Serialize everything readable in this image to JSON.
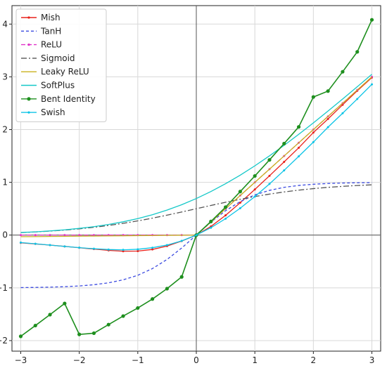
{
  "chart_data": {
    "type": "line",
    "title": "",
    "xlabel": "",
    "ylabel": "",
    "xlim": [
      -3.15,
      3.15
    ],
    "ylim": [
      -2.2,
      4.35
    ],
    "x_ticks": [
      -3,
      -2,
      -1,
      0,
      1,
      2,
      3
    ],
    "y_ticks": [
      -2,
      -1,
      0,
      1,
      2,
      3,
      4
    ],
    "grid": true,
    "legend_position": "top-left",
    "x": [
      -3,
      -2.75,
      -2.5,
      -2.25,
      -2,
      -1.75,
      -1.5,
      -1.25,
      -1,
      -0.75,
      -0.5,
      -0.25,
      0,
      0.25,
      0.5,
      0.75,
      1,
      1.25,
      1.5,
      1.75,
      2,
      2.25,
      2.5,
      2.75,
      3
    ],
    "series": [
      {
        "name": "Mish",
        "color": "#e8211b",
        "dash": "",
        "marker": "dot-small",
        "values": [
          -0.146,
          -0.167,
          -0.19,
          -0.214,
          -0.24,
          -0.265,
          -0.29,
          -0.306,
          -0.303,
          -0.272,
          -0.208,
          -0.113,
          0,
          0.164,
          0.375,
          0.614,
          0.865,
          1.124,
          1.388,
          1.655,
          1.944,
          2.202,
          2.47,
          2.735,
          2.987
        ]
      },
      {
        "name": "TanH",
        "color": "#3b4ae0",
        "dash": "4,3",
        "marker": "none",
        "values": [
          -0.995,
          -0.992,
          -0.987,
          -0.978,
          -0.964,
          -0.941,
          -0.905,
          -0.848,
          -0.762,
          -0.635,
          -0.462,
          -0.245,
          0,
          0.245,
          0.462,
          0.635,
          0.762,
          0.848,
          0.905,
          0.941,
          0.964,
          0.978,
          0.987,
          0.992,
          0.995
        ]
      },
      {
        "name": "ReLU",
        "color": "#e033c9",
        "dash": "6,3",
        "marker": "dot-small",
        "values": [
          0,
          0,
          0,
          0,
          0,
          0,
          0,
          0,
          0,
          0,
          0,
          0,
          0,
          0.25,
          0.5,
          0.75,
          1,
          1.25,
          1.5,
          1.75,
          2,
          2.25,
          2.5,
          2.75,
          3
        ]
      },
      {
        "name": "Sigmoid",
        "color": "#555555",
        "dash": "8,3,2,3",
        "marker": "none",
        "values": [
          0.047,
          0.06,
          0.076,
          0.095,
          0.119,
          0.148,
          0.182,
          0.223,
          0.269,
          0.321,
          0.378,
          0.438,
          0.5,
          0.562,
          0.622,
          0.679,
          0.731,
          0.777,
          0.818,
          0.852,
          0.881,
          0.905,
          0.924,
          0.94,
          0.953
        ]
      },
      {
        "name": "Leaky ReLU",
        "color": "#c9b11c",
        "dash": "",
        "marker": "none",
        "values": [
          -0.03,
          -0.028,
          -0.025,
          -0.023,
          -0.02,
          -0.018,
          -0.015,
          -0.013,
          -0.01,
          -0.008,
          -0.005,
          -0.003,
          0,
          0.25,
          0.5,
          0.75,
          1,
          1.25,
          1.5,
          1.75,
          2,
          2.25,
          2.5,
          2.75,
          3
        ]
      },
      {
        "name": "SoftPlus",
        "color": "#14c8c8",
        "dash": "",
        "marker": "none",
        "values": [
          0.049,
          0.062,
          0.079,
          0.1,
          0.127,
          0.16,
          0.201,
          0.252,
          0.313,
          0.386,
          0.474,
          0.576,
          0.693,
          0.826,
          0.974,
          1.136,
          1.313,
          1.502,
          1.701,
          1.91,
          2.127,
          2.351,
          2.579,
          2.812,
          3.049
        ]
      },
      {
        "name": "Bent Identity",
        "color": "#1e8f1e",
        "dash": "",
        "marker": "dot-large",
        "values": [
          -1.919,
          -1.715,
          -1.508,
          -1.296,
          -1.882,
          -1.86,
          -1.697,
          -1.535,
          -1.382,
          -1.212,
          -1.015,
          -0.792,
          0,
          0.258,
          0.53,
          0.825,
          1.121,
          1.425,
          1.735,
          2.051,
          2.618,
          2.73,
          3.096,
          3.474,
          4.081
        ]
      },
      {
        "name": "Swish",
        "color": "#0cc4e6",
        "dash": "",
        "marker": "dot-small",
        "values": [
          -0.142,
          -0.165,
          -0.19,
          -0.215,
          -0.238,
          -0.258,
          -0.274,
          -0.28,
          -0.269,
          -0.239,
          -0.189,
          -0.11,
          0,
          0.14,
          0.311,
          0.509,
          0.731,
          0.97,
          1.227,
          1.493,
          1.762,
          2.045,
          2.31,
          2.58,
          2.858
        ]
      }
    ]
  }
}
